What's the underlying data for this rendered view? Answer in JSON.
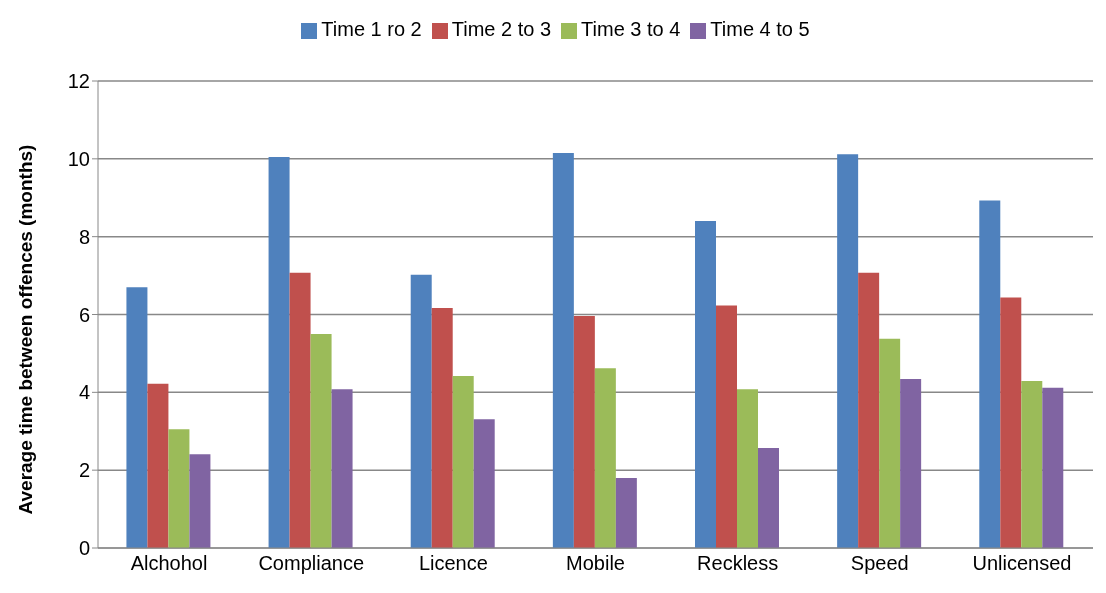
{
  "chart_data": {
    "type": "bar",
    "ylabel": "Average time between offences (months)",
    "categories": [
      "Alchohol",
      "Compliance",
      "Licence",
      "Mobile",
      "Reckless",
      "Speed",
      "Unlicensed"
    ],
    "series": [
      {
        "name": "Time 1 ro 2",
        "color": "#4f81bd",
        "values": [
          6.7,
          10.05,
          7.02,
          10.15,
          8.4,
          10.12,
          8.93
        ]
      },
      {
        "name": "Time 2 to 3",
        "color": "#c0504d",
        "values": [
          4.22,
          7.07,
          6.17,
          5.96,
          6.23,
          7.07,
          6.44
        ]
      },
      {
        "name": "Time 3 to 4",
        "color": "#9bbb59",
        "values": [
          3.05,
          5.5,
          4.42,
          4.62,
          4.08,
          5.38,
          4.29
        ]
      },
      {
        "name": "Time 4 to 5",
        "color": "#8064a2",
        "values": [
          2.41,
          4.08,
          3.31,
          1.8,
          2.57,
          4.34,
          4.12
        ]
      }
    ],
    "ylim": [
      0,
      12
    ],
    "yticks": [
      0,
      2,
      4,
      6,
      8,
      10,
      12
    ],
    "grid": "y",
    "legend": "top"
  }
}
